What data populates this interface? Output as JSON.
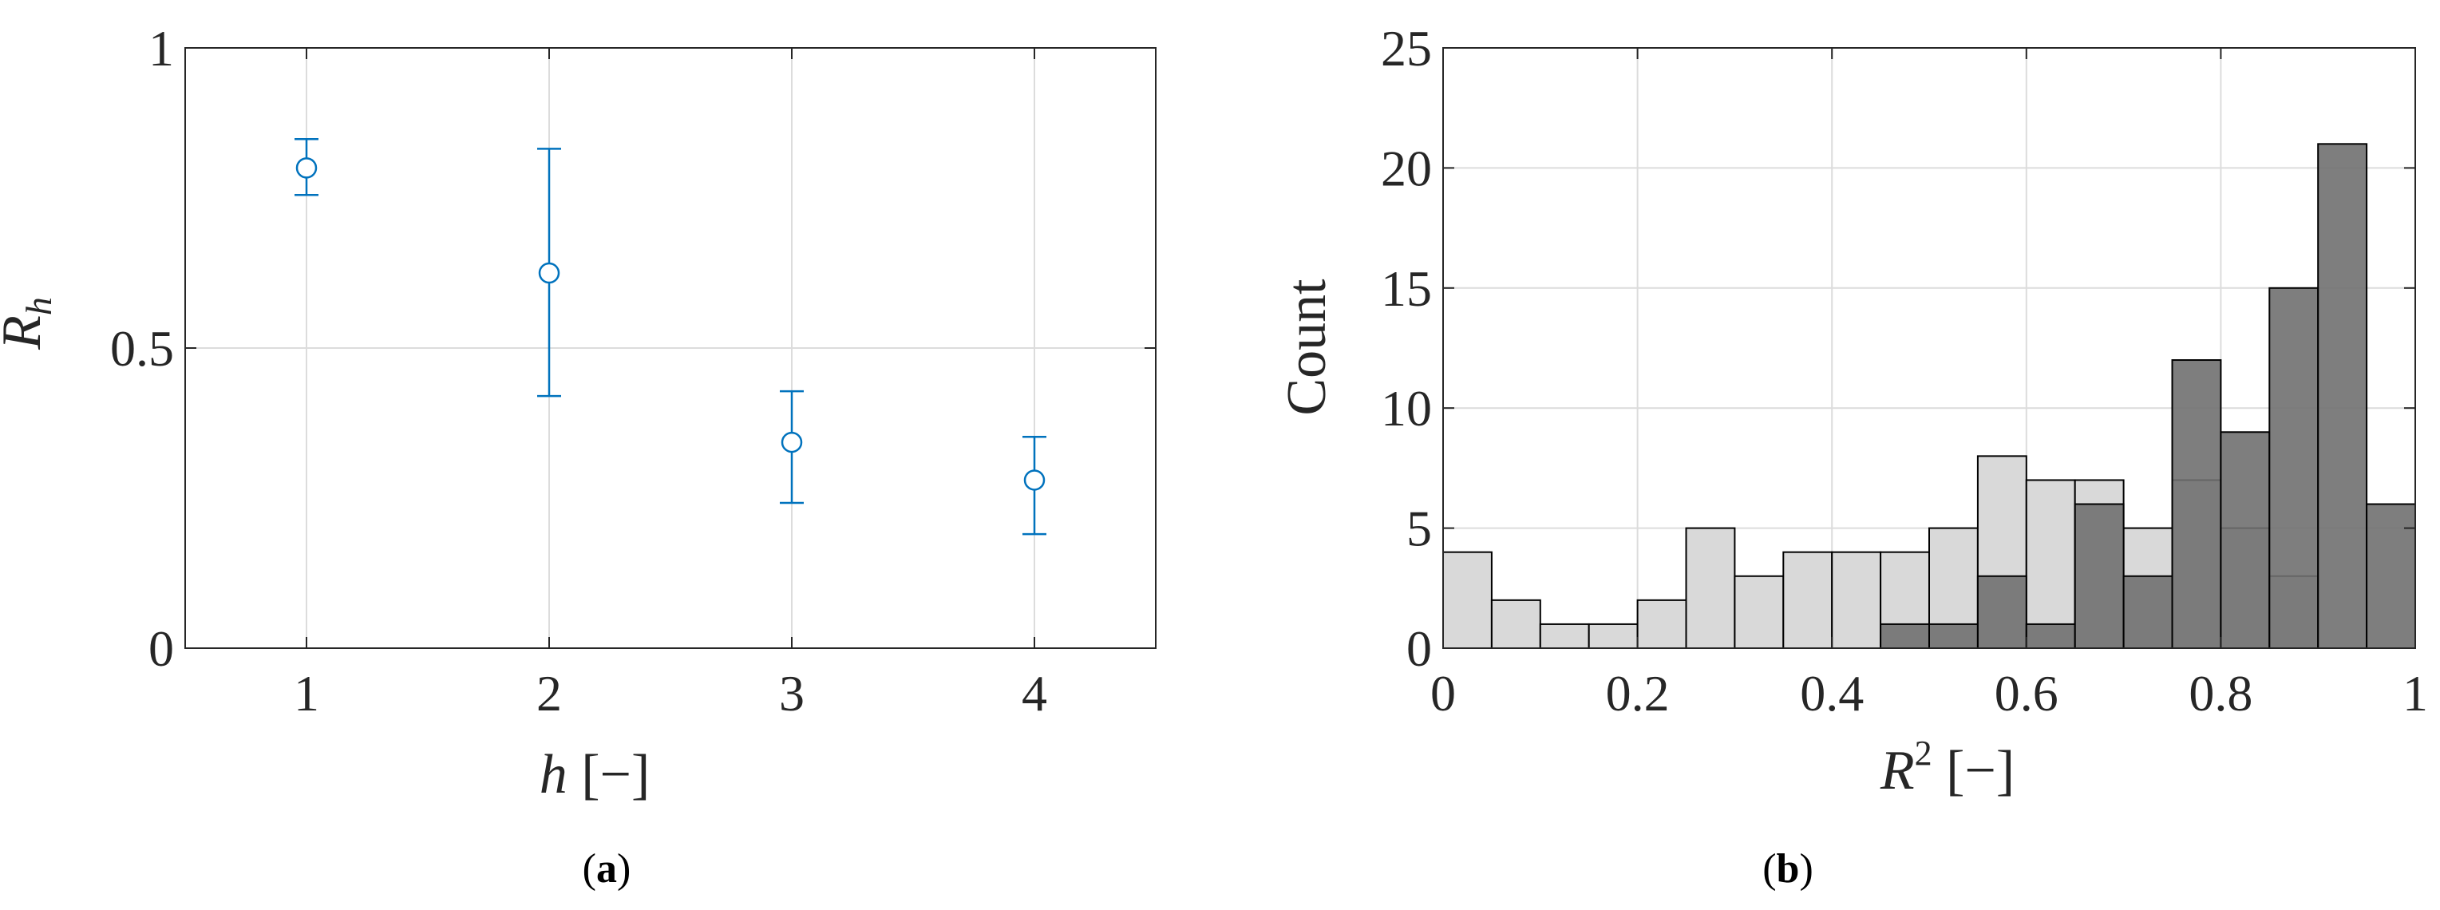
{
  "colors": {
    "errorbar": "#0072BD",
    "grid": "#DCDCDC",
    "axis": "#262626",
    "hist_light": "#D9D9D9",
    "hist_dark": "#707070",
    "bar_edge": "#000000"
  },
  "captions": {
    "a": "a",
    "b": "b"
  },
  "chart_data": [
    {
      "type": "scatter",
      "variant": "errorbar",
      "marker": "circle-open",
      "xlabel_symbol": "h",
      "xlabel_unit": "[−]",
      "ylabel_symbol": "R",
      "ylabel_sub": "h",
      "xlim": [
        0.5,
        4.5
      ],
      "ylim": [
        0,
        1
      ],
      "x_ticks": [
        1,
        2,
        3,
        4
      ],
      "x_tick_labels": [
        "1",
        "2",
        "3",
        "4"
      ],
      "y_ticks": [
        0,
        0.5,
        1
      ],
      "y_tick_labels": [
        "0",
        "0.5",
        "1"
      ],
      "grid": true,
      "points": [
        {
          "x": 1,
          "y": 0.8,
          "lower": 0.755,
          "upper": 0.848
        },
        {
          "x": 2,
          "y": 0.625,
          "lower": 0.42,
          "upper": 0.832
        },
        {
          "x": 3,
          "y": 0.343,
          "lower": 0.242,
          "upper": 0.428
        },
        {
          "x": 4,
          "y": 0.28,
          "lower": 0.19,
          "upper": 0.352
        }
      ]
    },
    {
      "type": "bar",
      "variant": "histogram-overlay",
      "ylabel": "Count",
      "xlabel_symbol": "R",
      "xlabel_sup": "2",
      "xlabel_unit": "[−]",
      "xlim": [
        0,
        1
      ],
      "ylim": [
        0,
        25
      ],
      "x_ticks": [
        0,
        0.2,
        0.4,
        0.6,
        0.8,
        1
      ],
      "x_tick_labels": [
        "0",
        "0.2",
        "0.4",
        "0.6",
        "0.8",
        "1"
      ],
      "y_ticks": [
        0,
        5,
        10,
        15,
        20,
        25
      ],
      "y_tick_labels": [
        "0",
        "5",
        "10",
        "15",
        "20",
        "25"
      ],
      "grid": true,
      "bin_edges": [
        0,
        0.05,
        0.1,
        0.15,
        0.2,
        0.25,
        0.3,
        0.35,
        0.4,
        0.45,
        0.5,
        0.55,
        0.6,
        0.65,
        0.7,
        0.75,
        0.8,
        0.85,
        0.9,
        0.95,
        1.0
      ],
      "series": [
        {
          "color_key": "hist_light",
          "values": [
            4,
            2,
            1,
            1,
            2,
            5,
            3,
            4,
            4,
            4,
            5,
            8,
            7,
            7,
            5,
            7,
            5,
            3,
            0,
            0
          ]
        },
        {
          "color_key": "hist_dark",
          "values": [
            0,
            0,
            0,
            0,
            0,
            0,
            0,
            0,
            0,
            1,
            1,
            3,
            1,
            6,
            3,
            12,
            9,
            15,
            21,
            6
          ]
        }
      ]
    }
  ]
}
